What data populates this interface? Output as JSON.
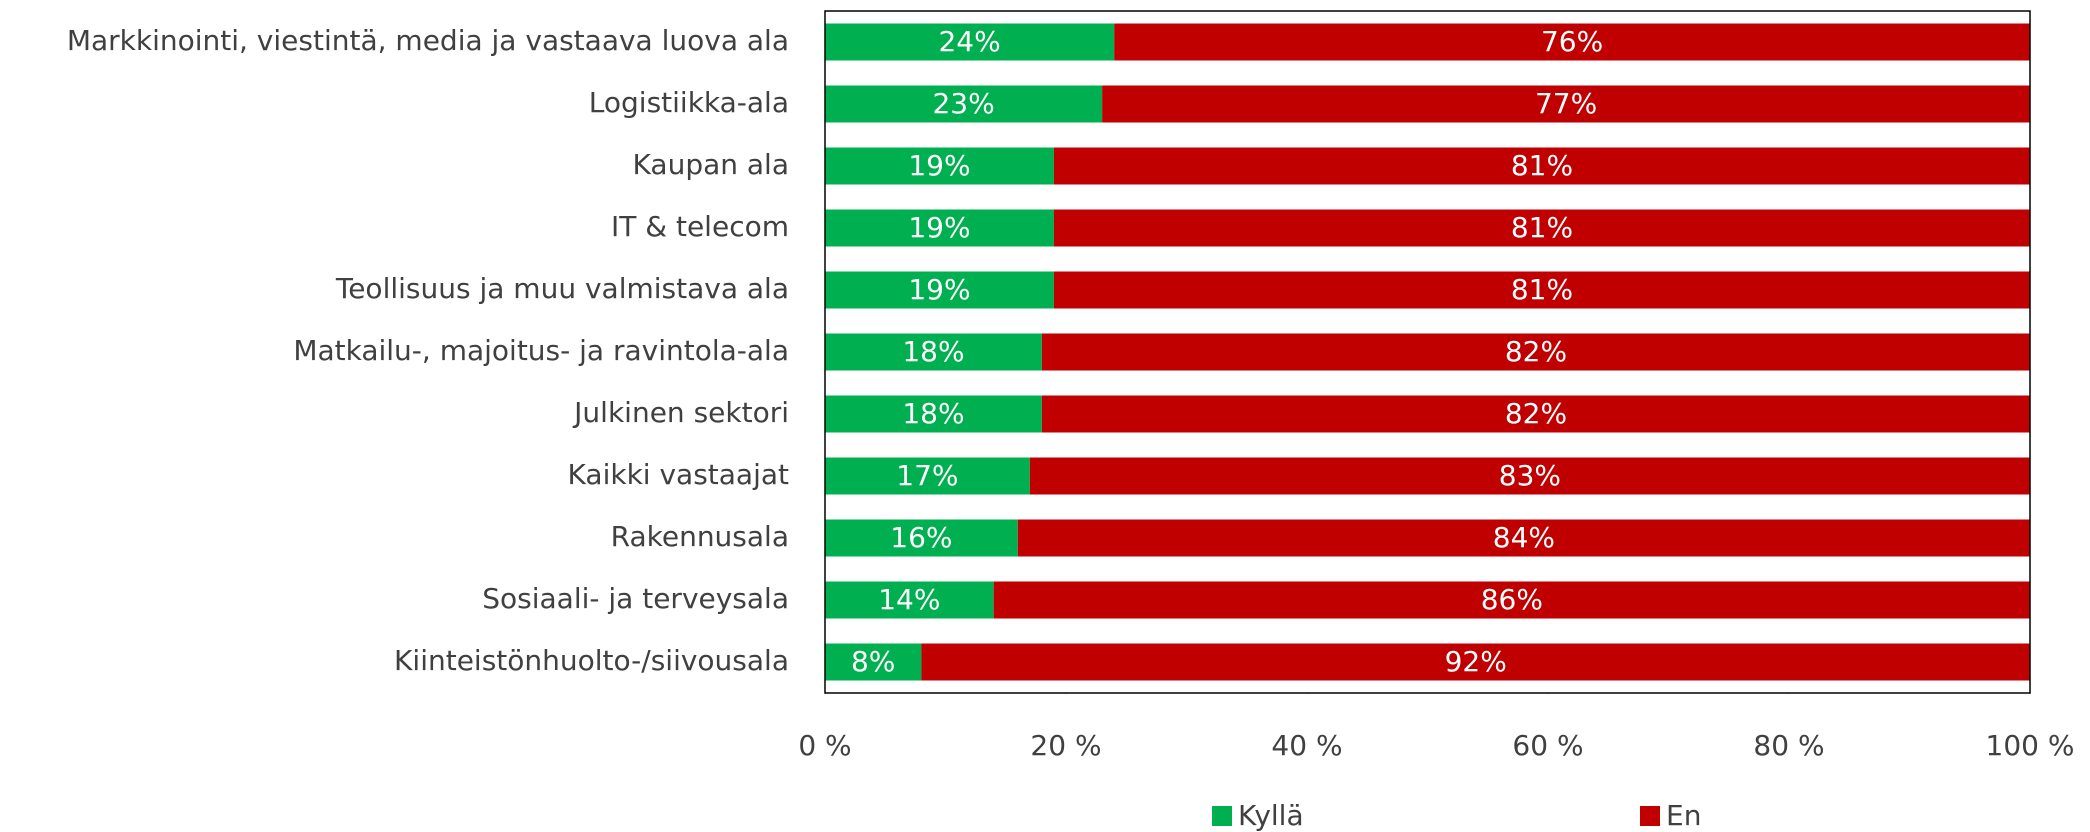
{
  "chart_data": {
    "type": "stacked_bar_horizontal",
    "categories": [
      "Markkinointi, viestintä, media ja vastaava luova ala",
      "Logistiikka-ala",
      "Kaupan ala",
      "IT & telecom",
      "Teollisuus ja muu valmistava ala",
      "Matkailu-, majoitus- ja ravintola-ala",
      "Julkinen sektori",
      "Kaikki vastaajat",
      "Rakennusala",
      "Sosiaali- ja terveysala",
      "Kiinteistönhuolto-/siivousala"
    ],
    "series": [
      {
        "name": "Kyllä",
        "color": "#00b050",
        "values": [
          24,
          23,
          19,
          19,
          19,
          18,
          18,
          17,
          16,
          14,
          8
        ],
        "value_labels": [
          "24%",
          "23%",
          "19%",
          "19%",
          "19%",
          "18%",
          "18%",
          "17%",
          "16%",
          "14%",
          "8%"
        ]
      },
      {
        "name": "En",
        "color": "#c00000",
        "values": [
          76,
          77,
          81,
          81,
          81,
          82,
          82,
          83,
          84,
          86,
          92
        ],
        "value_labels": [
          "76%",
          "77%",
          "81%",
          "81%",
          "81%",
          "82%",
          "82%",
          "83%",
          "84%",
          "86%",
          "92%"
        ]
      }
    ],
    "xlim": [
      0,
      100
    ],
    "xticks": [
      {
        "value": 0,
        "label": "0 %"
      },
      {
        "value": 20,
        "label": "20 %"
      },
      {
        "value": 40,
        "label": "40 %"
      },
      {
        "value": 60,
        "label": "60 %"
      },
      {
        "value": 80,
        "label": "80 %"
      },
      {
        "value": 100,
        "label": "100 %"
      }
    ],
    "legend": "bottom"
  }
}
